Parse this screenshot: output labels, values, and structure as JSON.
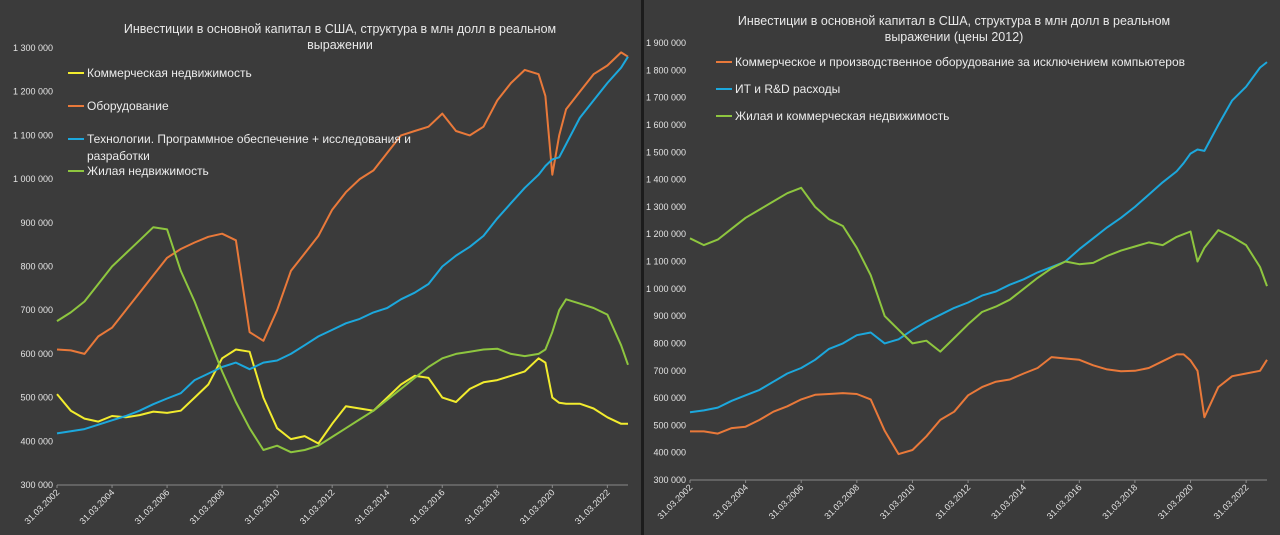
{
  "chart_data": [
    {
      "type": "line",
      "title_line1": "Инвестиции в основной капитал в США, структура в млн долл в реальном",
      "title_line2": "выражении",
      "xlabel": "",
      "ylabel": "",
      "ylim": [
        300000,
        1300000
      ],
      "y_ticks": [
        "300 000",
        "400 000",
        "500 000",
        "600 000",
        "700 000",
        "800 000",
        "900 000",
        "1 000 000",
        "1 100 000",
        "1 200 000",
        "1 300 000"
      ],
      "x_ticks": [
        "31.03.2002",
        "31.03.2004",
        "31.03.2006",
        "31.03.2008",
        "31.03.2010",
        "31.03.2012",
        "31.03.2014",
        "31.03.2016",
        "31.03.2018",
        "31.03.2020",
        "31.03.2022"
      ],
      "xlim": [
        2002.25,
        2023.0
      ],
      "grid": false,
      "legend_position": "top-left",
      "series": [
        {
          "name": "Коммерческая недвижимость",
          "color": "#f2ec2e",
          "x": [
            2002.25,
            2002.75,
            2003.25,
            2003.75,
            2004.25,
            2004.75,
            2005.25,
            2005.75,
            2006.25,
            2006.75,
            2007.25,
            2007.75,
            2008.25,
            2008.75,
            2009.25,
            2009.75,
            2010.25,
            2010.75,
            2011.25,
            2011.75,
            2012.25,
            2012.75,
            2013.25,
            2013.75,
            2014.25,
            2014.75,
            2015.25,
            2015.75,
            2016.25,
            2016.75,
            2017.25,
            2017.75,
            2018.25,
            2018.75,
            2019.25,
            2019.75,
            2020.0,
            2020.25,
            2020.5,
            2020.75,
            2021.25,
            2021.75,
            2022.25,
            2022.75,
            2023.0
          ],
          "y": [
            508000,
            470000,
            452000,
            445000,
            458000,
            455000,
            460000,
            468000,
            465000,
            470000,
            500000,
            530000,
            590000,
            610000,
            605000,
            500000,
            430000,
            405000,
            412000,
            395000,
            440000,
            480000,
            475000,
            470000,
            500000,
            530000,
            550000,
            545000,
            500000,
            490000,
            520000,
            535000,
            540000,
            550000,
            560000,
            590000,
            580000,
            500000,
            488000,
            486000,
            486000,
            475000,
            455000,
            440000,
            440000
          ]
        },
        {
          "name": "Оборудование",
          "color": "#e9793a",
          "x": [
            2002.25,
            2002.75,
            2003.25,
            2003.75,
            2004.25,
            2004.75,
            2005.25,
            2005.75,
            2006.25,
            2006.75,
            2007.25,
            2007.75,
            2008.25,
            2008.75,
            2009.25,
            2009.75,
            2010.25,
            2010.75,
            2011.25,
            2011.75,
            2012.25,
            2012.75,
            2013.25,
            2013.75,
            2014.25,
            2014.75,
            2015.25,
            2015.75,
            2016.25,
            2016.75,
            2017.25,
            2017.75,
            2018.25,
            2018.75,
            2019.25,
            2019.75,
            2020.0,
            2020.25,
            2020.5,
            2020.75,
            2021.25,
            2021.75,
            2022.25,
            2022.75,
            2023.0
          ],
          "y": [
            610000,
            608000,
            600000,
            640000,
            660000,
            700000,
            740000,
            780000,
            820000,
            840000,
            855000,
            868000,
            875000,
            860000,
            650000,
            630000,
            700000,
            790000,
            830000,
            870000,
            930000,
            970000,
            1000000,
            1020000,
            1060000,
            1100000,
            1110000,
            1120000,
            1150000,
            1110000,
            1100000,
            1120000,
            1180000,
            1220000,
            1250000,
            1240000,
            1190000,
            1010000,
            1100000,
            1160000,
            1200000,
            1240000,
            1260000,
            1290000,
            1280000
          ]
        },
        {
          "name": "Технологии. Программное обеспечение + исследования и разработки",
          "color": "#1ca8dd",
          "x": [
            2002.25,
            2002.75,
            2003.25,
            2003.75,
            2004.25,
            2004.75,
            2005.25,
            2005.75,
            2006.25,
            2006.75,
            2007.25,
            2007.75,
            2008.25,
            2008.75,
            2009.25,
            2009.75,
            2010.25,
            2010.75,
            2011.25,
            2011.75,
            2012.25,
            2012.75,
            2013.25,
            2013.75,
            2014.25,
            2014.75,
            2015.25,
            2015.75,
            2016.25,
            2016.75,
            2017.25,
            2017.75,
            2018.25,
            2018.75,
            2019.25,
            2019.75,
            2020.0,
            2020.25,
            2020.5,
            2020.75,
            2021.25,
            2021.75,
            2022.25,
            2022.75,
            2023.0
          ],
          "y": [
            418000,
            423000,
            428000,
            438000,
            448000,
            458000,
            470000,
            485000,
            498000,
            510000,
            540000,
            555000,
            570000,
            580000,
            565000,
            580000,
            585000,
            600000,
            620000,
            640000,
            655000,
            670000,
            680000,
            695000,
            705000,
            725000,
            740000,
            760000,
            800000,
            825000,
            845000,
            870000,
            910000,
            945000,
            980000,
            1010000,
            1030000,
            1045000,
            1050000,
            1080000,
            1140000,
            1180000,
            1220000,
            1255000,
            1280000
          ]
        },
        {
          "name": "Жилая недвижимость",
          "color": "#8ec63f",
          "x": [
            2002.25,
            2002.75,
            2003.25,
            2003.75,
            2004.25,
            2004.75,
            2005.25,
            2005.75,
            2006.25,
            2006.75,
            2007.25,
            2007.75,
            2008.25,
            2008.75,
            2009.25,
            2009.75,
            2010.25,
            2010.75,
            2011.25,
            2011.75,
            2012.25,
            2012.75,
            2013.25,
            2013.75,
            2014.25,
            2014.75,
            2015.25,
            2015.75,
            2016.25,
            2016.75,
            2017.25,
            2017.75,
            2018.25,
            2018.75,
            2019.25,
            2019.75,
            2020.0,
            2020.25,
            2020.5,
            2020.75,
            2021.25,
            2021.75,
            2022.25,
            2022.75,
            2023.0
          ],
          "y": [
            675000,
            695000,
            720000,
            760000,
            800000,
            830000,
            860000,
            890000,
            885000,
            790000,
            720000,
            640000,
            560000,
            490000,
            430000,
            380000,
            390000,
            375000,
            380000,
            390000,
            410000,
            430000,
            450000,
            470000,
            495000,
            520000,
            545000,
            570000,
            590000,
            600000,
            605000,
            610000,
            612000,
            600000,
            595000,
            600000,
            610000,
            650000,
            700000,
            725000,
            715000,
            705000,
            690000,
            620000,
            575000
          ]
        }
      ]
    },
    {
      "type": "line",
      "title_line1": "Инвестиции в основной капитал в США, структура в млн долл в реальном",
      "title_line2": "выражении (цены 2012)",
      "xlabel": "",
      "ylabel": "",
      "ylim": [
        300000,
        1900000
      ],
      "y_ticks": [
        "300 000",
        "400 000",
        "500 000",
        "600 000",
        "700 000",
        "800 000",
        "900 000",
        "1 000 000",
        "1 100 000",
        "1 200 000",
        "1 300 000",
        "1 400 000",
        "1 500 000",
        "1 600 000",
        "1 700 000",
        "1 800 000",
        "1 900 000"
      ],
      "x_ticks": [
        "31.03.2002",
        "31.03.2004",
        "31.03.2006",
        "31.03.2008",
        "31.03.2010",
        "31.03.2012",
        "31.03.2014",
        "31.03.2016",
        "31.03.2018",
        "31.03.2020",
        "31.03.2022"
      ],
      "xlim": [
        2002.25,
        2023.0
      ],
      "grid": false,
      "legend_position": "top-left",
      "series": [
        {
          "name": "Коммерческое и производственное оборудование за исключением компьютеров",
          "color": "#e9793a",
          "x": [
            2002.25,
            2002.75,
            2003.25,
            2003.75,
            2004.25,
            2004.75,
            2005.25,
            2005.75,
            2006.25,
            2006.75,
            2007.25,
            2007.75,
            2008.25,
            2008.75,
            2009.25,
            2009.75,
            2010.25,
            2010.75,
            2011.25,
            2011.75,
            2012.25,
            2012.75,
            2013.25,
            2013.75,
            2014.25,
            2014.75,
            2015.25,
            2015.75,
            2016.25,
            2016.75,
            2017.25,
            2017.75,
            2018.25,
            2018.75,
            2019.25,
            2019.75,
            2020.0,
            2020.25,
            2020.5,
            2020.75,
            2021.25,
            2021.75,
            2022.25,
            2022.75,
            2023.0
          ],
          "y": [
            478000,
            478000,
            470000,
            490000,
            495000,
            520000,
            550000,
            570000,
            595000,
            612000,
            615000,
            618000,
            615000,
            595000,
            480000,
            395000,
            410000,
            460000,
            520000,
            550000,
            610000,
            640000,
            660000,
            668000,
            690000,
            710000,
            750000,
            745000,
            740000,
            720000,
            705000,
            698000,
            700000,
            710000,
            735000,
            760000,
            760000,
            738000,
            700000,
            530000,
            640000,
            680000,
            690000,
            700000,
            740000
          ]
        },
        {
          "name": "ИТ и R&D расходы",
          "color": "#1ca8dd",
          "x": [
            2002.25,
            2002.75,
            2003.25,
            2003.75,
            2004.25,
            2004.75,
            2005.25,
            2005.75,
            2006.25,
            2006.75,
            2007.25,
            2007.75,
            2008.25,
            2008.75,
            2009.25,
            2009.75,
            2010.25,
            2010.75,
            2011.25,
            2011.75,
            2012.25,
            2012.75,
            2013.25,
            2013.75,
            2014.25,
            2014.75,
            2015.25,
            2015.75,
            2016.25,
            2016.75,
            2017.25,
            2017.75,
            2018.25,
            2018.75,
            2019.25,
            2019.75,
            2020.0,
            2020.25,
            2020.5,
            2020.75,
            2021.25,
            2021.75,
            2022.25,
            2022.75,
            2023.0
          ],
          "y": [
            548000,
            555000,
            565000,
            590000,
            610000,
            630000,
            660000,
            690000,
            710000,
            740000,
            780000,
            800000,
            830000,
            840000,
            800000,
            815000,
            850000,
            880000,
            905000,
            930000,
            950000,
            975000,
            990000,
            1015000,
            1035000,
            1060000,
            1080000,
            1100000,
            1145000,
            1185000,
            1225000,
            1260000,
            1300000,
            1345000,
            1390000,
            1430000,
            1460000,
            1495000,
            1510000,
            1505000,
            1600000,
            1690000,
            1740000,
            1810000,
            1830000
          ]
        },
        {
          "name": "Жилая и коммерческая недвижимость",
          "color": "#8ec63f",
          "x": [
            2002.25,
            2002.75,
            2003.25,
            2003.75,
            2004.25,
            2004.75,
            2005.25,
            2005.75,
            2006.25,
            2006.75,
            2007.25,
            2007.75,
            2008.25,
            2008.75,
            2009.25,
            2009.75,
            2010.25,
            2010.75,
            2011.25,
            2011.75,
            2012.25,
            2012.75,
            2013.25,
            2013.75,
            2014.25,
            2014.75,
            2015.25,
            2015.75,
            2016.25,
            2016.75,
            2017.25,
            2017.75,
            2018.25,
            2018.75,
            2019.25,
            2019.75,
            2020.0,
            2020.25,
            2020.5,
            2020.75,
            2021.25,
            2021.75,
            2022.25,
            2022.75,
            2023.0
          ],
          "y": [
            1185000,
            1160000,
            1180000,
            1220000,
            1260000,
            1290000,
            1320000,
            1350000,
            1370000,
            1300000,
            1255000,
            1230000,
            1150000,
            1050000,
            900000,
            850000,
            800000,
            810000,
            770000,
            820000,
            870000,
            915000,
            935000,
            960000,
            1000000,
            1040000,
            1075000,
            1100000,
            1090000,
            1095000,
            1120000,
            1140000,
            1155000,
            1170000,
            1160000,
            1190000,
            1200000,
            1210000,
            1100000,
            1150000,
            1215000,
            1190000,
            1160000,
            1080000,
            1010000
          ]
        }
      ]
    }
  ]
}
